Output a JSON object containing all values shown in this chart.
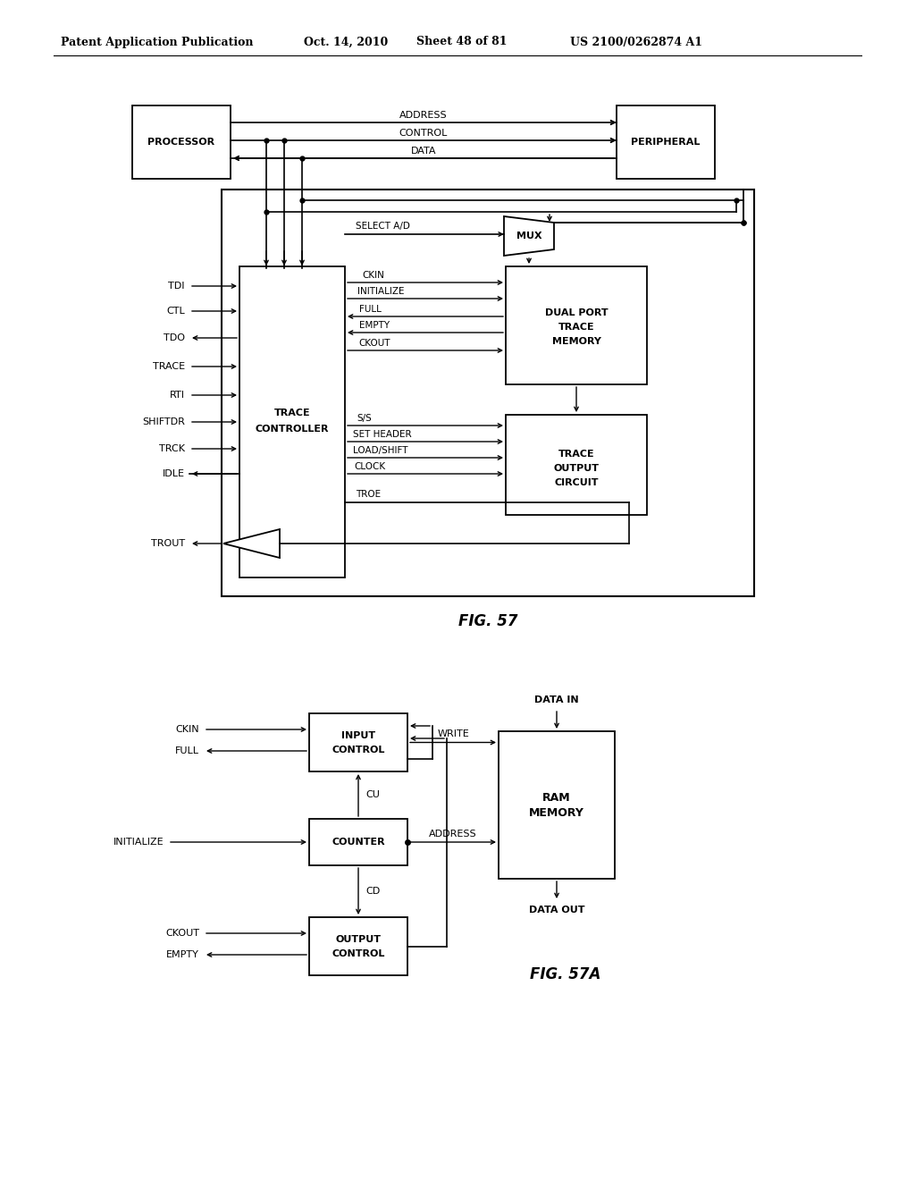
{
  "bg_color": "#ffffff",
  "header_title": "Patent Application Publication",
  "header_date": "Oct. 14, 2010",
  "header_sheet": "Sheet 48 of 81",
  "header_number": "US 2100/0262874 A1",
  "fig57_caption": "FIG. 57",
  "fig57a_caption": "FIG. 57A"
}
